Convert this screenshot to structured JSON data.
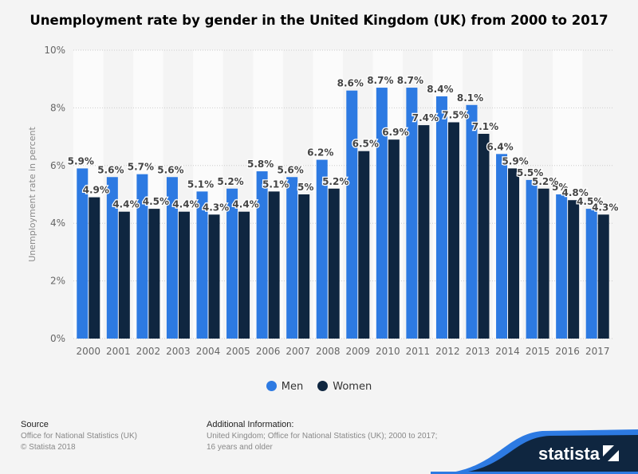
{
  "chart_data": {
    "type": "bar",
    "title": "Unemployment rate by gender in the United Kingdom (UK) from 2000 to 2017",
    "xlabel": "",
    "ylabel": "Unemployment rate in percent",
    "ylim": [
      0,
      10
    ],
    "yticks": [
      "0%",
      "2%",
      "4%",
      "6%",
      "8%",
      "10%"
    ],
    "grid": true,
    "legend_position": "bottom",
    "categories": [
      "2000",
      "2001",
      "2002",
      "2003",
      "2004",
      "2005",
      "2006",
      "2007",
      "2008",
      "2009",
      "2010",
      "2011",
      "2012",
      "2013",
      "2014",
      "2015",
      "2016",
      "2017"
    ],
    "series": [
      {
        "name": "Men",
        "color": "#2d7ae2",
        "values": [
          5.9,
          5.6,
          5.7,
          5.6,
          5.1,
          5.2,
          5.8,
          5.6,
          6.2,
          8.6,
          8.7,
          8.7,
          8.4,
          8.1,
          6.4,
          5.5,
          5,
          4.5
        ],
        "labels": [
          "5.9%",
          "5.6%",
          "5.7%",
          "5.6%",
          "5.1%",
          "5.2%",
          "5.8%",
          "5.6%",
          "6.2%",
          "8.6%",
          "8.7%",
          "8.7%",
          "8.4%",
          "8.1%",
          "6.4%",
          "5.5%",
          "5%",
          "4.5%"
        ]
      },
      {
        "name": "Women",
        "color": "#0f2640",
        "values": [
          4.9,
          4.4,
          4.5,
          4.4,
          4.3,
          4.4,
          5.1,
          5,
          5.2,
          6.5,
          6.9,
          7.4,
          7.5,
          7.1,
          5.9,
          5.2,
          4.8,
          4.3
        ],
        "labels": [
          "4.9%",
          "4.4%",
          "4.5%",
          "4.4%",
          "4.3%",
          "4.4%",
          "5.1%",
          "5%",
          "5.2%",
          "6.5%",
          "6.9%",
          "7.4%",
          "7.5%",
          "7.1%",
          "5.9%",
          "5.2%",
          "4.8%",
          "4.3%"
        ]
      }
    ]
  },
  "footer": {
    "source_heading": "Source",
    "source_line1": "Office for National Statistics (UK)",
    "source_line2": "© Statista 2018",
    "info_heading": "Additional Information:",
    "info_line1": "United Kingdom; Office for National Statistics (UK); 2000 to 2017;",
    "info_line2": "16 years and older",
    "brand": "statista"
  }
}
